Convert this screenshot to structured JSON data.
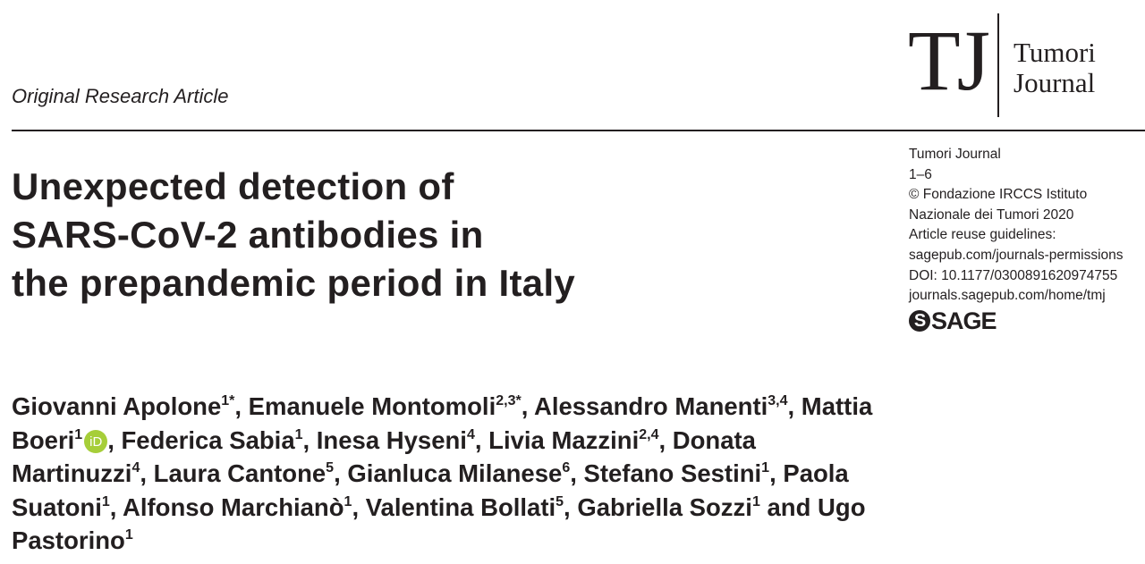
{
  "header": {
    "article_type": "Original Research Article",
    "logo_letters": "TJ",
    "logo_name_line1": "Tumori",
    "logo_name_line2": "Journal"
  },
  "meta": {
    "lines": [
      "Tumori Journal",
      "1–6",
      "© Fondazione IRCCS Istituto",
      "Nazionale dei Tumori 2020",
      "Article reuse guidelines:",
      "sagepub.com/journals-permissions",
      "DOI: 10.1177/0300891620974755",
      "journals.sagepub.com/home/tmj"
    ],
    "publisher_logo": "SAGE"
  },
  "title_lines": [
    "Unexpected detection of",
    "SARS-CoV-2 antibodies in",
    "the prepandemic period in Italy"
  ],
  "authors": [
    {
      "name": "Giovanni Apolone",
      "sup": "1*",
      "sep": ", "
    },
    {
      "name": "Emanuele Montomoli",
      "sup": "2,3*",
      "sep": ", "
    },
    {
      "name": "Alessandro Manenti",
      "sup": "3,4",
      "sep": ", "
    },
    {
      "name": "Mattia Boeri",
      "sup": "1",
      "orcid": "iD",
      "sep": ", "
    },
    {
      "name": "Federica Sabia",
      "sup": "1",
      "sep": ", "
    },
    {
      "name": "Inesa Hyseni",
      "sup": "4",
      "sep": ", "
    },
    {
      "name": "Livia Mazzini",
      "sup": "2,4",
      "sep": ", "
    },
    {
      "name": "Donata Martinuzzi",
      "sup": "4",
      "sep": ", "
    },
    {
      "name": "Laura Cantone",
      "sup": "5",
      "sep": ", "
    },
    {
      "name": "Gianluca Milanese",
      "sup": "6",
      "sep": ", "
    },
    {
      "name": "Stefano Sestini",
      "sup": "1",
      "sep": ", "
    },
    {
      "name": "Paola Suatoni",
      "sup": "1",
      "sep": ", "
    },
    {
      "name": "Alfonso Marchianò",
      "sup": "1",
      "sep": ", "
    },
    {
      "name": "Valentina Bollati",
      "sup": "5",
      "sep": ", "
    },
    {
      "name": "Gabriella Sozzi",
      "sup": "1",
      "sep": " and "
    },
    {
      "name": "Ugo Pastorino",
      "sup": "1",
      "sep": ""
    }
  ],
  "colors": {
    "text": "#231f20",
    "orcid": "#a6ce39"
  }
}
